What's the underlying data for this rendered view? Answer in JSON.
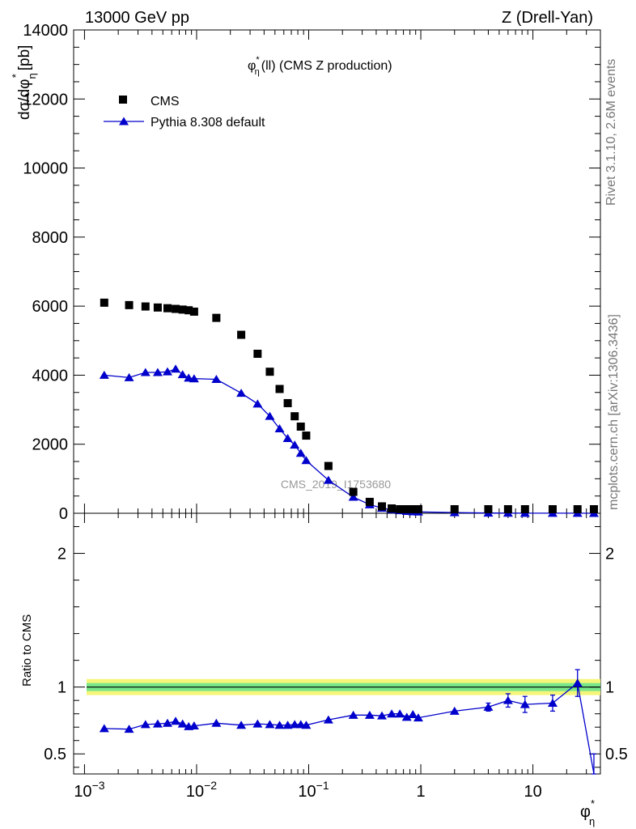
{
  "header": {
    "left": "13000 GeV pp",
    "right": "Z (Drell-Yan)"
  },
  "side_text": {
    "rivet": "Rivet 3.1.10,  2.6M events",
    "mcplots": "mcplots.cern.ch [arXiv:1306.3436]"
  },
  "watermark": "CMS_2019_I1753680",
  "main_title": {
    "symbol": "φ",
    "sup": "*",
    "sub": "η",
    "rest": "(ll) (CMS Z production)"
  },
  "axis_labels": {
    "y_main": "dσ/dφ",
    "y_main_sub": "η",
    "y_main_sup": "*",
    "y_main_unit": "[pb]",
    "y_ratio": "Ratio to CMS",
    "x_symbol": "φ",
    "x_sup": "*",
    "x_sub": "η"
  },
  "x_ticks": [
    {
      "value": 0.001,
      "base": "10",
      "exp": "−3"
    },
    {
      "value": 0.01,
      "base": "10",
      "exp": "−2"
    },
    {
      "value": 0.1,
      "base": "10",
      "exp": "−1"
    },
    {
      "value": 1,
      "base": "1",
      "exp": ""
    },
    {
      "value": 10,
      "base": "10",
      "exp": ""
    }
  ],
  "colors": {
    "data": "#000000",
    "mc": "#0000cc",
    "band_inner": "#78e78a",
    "band_outer": "#f5f57a"
  },
  "chart_data": [
    {
      "type": "scatter",
      "panel": "main",
      "xscale": "log",
      "xlim": [
        0.0008,
        40
      ],
      "ylim": [
        0,
        14000
      ],
      "y_ticks": [
        0,
        2000,
        4000,
        6000,
        8000,
        10000,
        12000,
        14000
      ],
      "y_tick_labels": [
        "0",
        "2000",
        "4000",
        "6000",
        "8000",
        "10000",
        "12000",
        "14000"
      ],
      "legend": "top-left",
      "x": [
        0.0015,
        0.0025,
        0.0035,
        0.0045,
        0.0055,
        0.0065,
        0.0075,
        0.0085,
        0.0095,
        0.015,
        0.025,
        0.035,
        0.045,
        0.055,
        0.065,
        0.075,
        0.085,
        0.095,
        0.15,
        0.25,
        0.35,
        0.45,
        0.55,
        0.65,
        0.75,
        0.85,
        0.95,
        2,
        4,
        6,
        8.5,
        15,
        25,
        35
      ],
      "series": [
        {
          "name": "CMS",
          "marker": "square",
          "values": [
            6100,
            6030,
            5990,
            5960,
            5940,
            5920,
            5900,
            5880,
            5840,
            5660,
            5170,
            4620,
            4100,
            3600,
            3190,
            2810,
            2510,
            2250,
            1370,
            620,
            330,
            200,
            140,
            105,
            80,
            65,
            55,
            25,
            10,
            6,
            4,
            2.5,
            1.5,
            1
          ]
        },
        {
          "name": "Pythia 8.308 default",
          "marker": "triangle",
          "values": [
            4000,
            3930,
            4080,
            4080,
            4100,
            4180,
            4020,
            3920,
            3900,
            3880,
            3480,
            3170,
            2810,
            2450,
            2170,
            1980,
            1740,
            1530,
            960,
            470,
            250,
            150,
            105,
            80,
            58,
            47,
            40,
            20,
            8,
            5,
            3.4,
            2,
            1.5,
            0.3
          ]
        }
      ]
    },
    {
      "type": "line",
      "panel": "ratio",
      "xscale": "log",
      "xlim": [
        0.0008,
        40
      ],
      "ylim": [
        0.35,
        2.3
      ],
      "ylabel": "Ratio to CMS",
      "y_ticks": [
        0.5,
        1,
        2
      ],
      "y_tick_labels": [
        "0.5",
        "1",
        "2"
      ],
      "band_inner_halfwidth": 0.03,
      "band_outer_halfwidth": 0.06,
      "x": [
        0.0015,
        0.0025,
        0.0035,
        0.0045,
        0.0055,
        0.0065,
        0.0075,
        0.0085,
        0.0095,
        0.015,
        0.025,
        0.035,
        0.045,
        0.055,
        0.065,
        0.075,
        0.085,
        0.095,
        0.15,
        0.25,
        0.35,
        0.45,
        0.55,
        0.65,
        0.75,
        0.85,
        0.95,
        2,
        4,
        6,
        8.5,
        15,
        25,
        35
      ],
      "series": [
        {
          "name": "Pythia 8.308 default",
          "values": [
            0.69,
            0.685,
            0.72,
            0.725,
            0.73,
            0.745,
            0.725,
            0.705,
            0.71,
            0.73,
            0.715,
            0.725,
            0.72,
            0.715,
            0.715,
            0.72,
            0.72,
            0.715,
            0.755,
            0.79,
            0.79,
            0.785,
            0.8,
            0.8,
            0.775,
            0.795,
            0.77,
            0.82,
            0.85,
            0.9,
            0.87,
            0.88,
            1.03,
            0.35
          ],
          "errors": [
            0.01,
            0.01,
            0.01,
            0.01,
            0.01,
            0.01,
            0.01,
            0.01,
            0.01,
            0.01,
            0.01,
            0.01,
            0.01,
            0.01,
            0.01,
            0.01,
            0.01,
            0.01,
            0.01,
            0.01,
            0.015,
            0.015,
            0.015,
            0.015,
            0.02,
            0.02,
            0.02,
            0.02,
            0.03,
            0.05,
            0.06,
            0.06,
            0.1,
            0.15
          ]
        }
      ]
    }
  ]
}
